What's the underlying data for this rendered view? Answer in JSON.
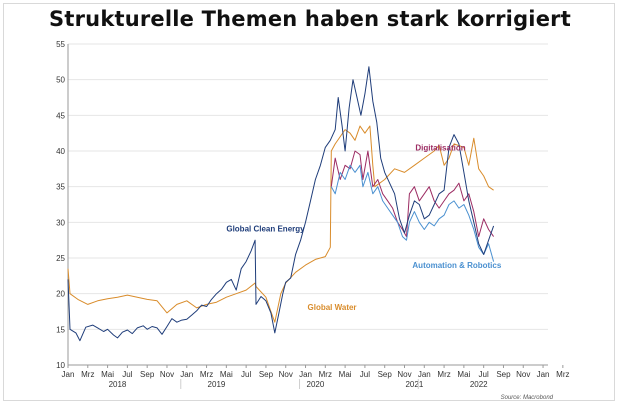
{
  "chart_data": {
    "type": "line",
    "title": "Strukturelle Themen haben stark korrigiert",
    "source": "Source: Macrobond",
    "ylim": [
      10,
      55
    ],
    "y_ticks": [
      10,
      15,
      20,
      25,
      30,
      35,
      40,
      45,
      50,
      55
    ],
    "x_range": [
      0,
      48.5
    ],
    "month_labels": [
      "Jan",
      "Mrz",
      "Mai",
      "Jul",
      "Sep",
      "Nov",
      "Jan",
      "Mrz",
      "Mai",
      "Jul",
      "Sep",
      "Nov",
      "Jan",
      "Mrz",
      "Mai",
      "Jul",
      "Sep",
      "Nov",
      "Jan",
      "Mrz",
      "Mai",
      "Jul",
      "Sep",
      "Nov",
      "Jan",
      "Mrz"
    ],
    "year_labels": [
      {
        "label": "2018",
        "x": 5
      },
      {
        "label": "2019",
        "x": 15
      },
      {
        "label": "2020",
        "x": 25
      },
      {
        "label": "2021",
        "x": 35
      },
      {
        "label": "2022",
        "x": 41.5
      }
    ],
    "series": [
      {
        "name": "Global Clean Energy",
        "color": "#1f3d7a",
        "label_at": [
          16,
          28.7
        ],
        "points": [
          [
            0,
            22
          ],
          [
            0.2,
            15
          ],
          [
            0.8,
            14.5
          ],
          [
            1.2,
            13.4
          ],
          [
            1.8,
            15.3
          ],
          [
            2.5,
            15.6
          ],
          [
            3,
            15.2
          ],
          [
            3.6,
            14.7
          ],
          [
            4,
            15
          ],
          [
            4.6,
            14.2
          ],
          [
            5,
            13.8
          ],
          [
            5.5,
            14.6
          ],
          [
            6,
            14.9
          ],
          [
            6.5,
            14.4
          ],
          [
            7,
            15.2
          ],
          [
            7.6,
            15.5
          ],
          [
            8,
            15
          ],
          [
            8.5,
            15.4
          ],
          [
            9,
            15.2
          ],
          [
            9.5,
            14.3
          ],
          [
            10,
            15.4
          ],
          [
            10.5,
            16.5
          ],
          [
            11,
            16
          ],
          [
            11.5,
            16.3
          ],
          [
            12,
            16.4
          ],
          [
            12.5,
            17
          ],
          [
            13,
            17.6
          ],
          [
            13.5,
            18.4
          ],
          [
            14,
            18.2
          ],
          [
            14.5,
            19.2
          ],
          [
            15,
            20
          ],
          [
            15.5,
            20.6
          ],
          [
            16,
            21.6
          ],
          [
            16.5,
            22
          ],
          [
            17,
            20.5
          ],
          [
            17.5,
            23.5
          ],
          [
            18,
            24.5
          ],
          [
            18.5,
            26
          ],
          [
            18.9,
            27.5
          ],
          [
            19,
            18.5
          ],
          [
            19.5,
            19.6
          ],
          [
            20,
            19
          ],
          [
            20.5,
            17.3
          ],
          [
            20.9,
            14.5
          ],
          [
            21.3,
            17.2
          ],
          [
            21.7,
            20
          ],
          [
            22,
            21.6
          ],
          [
            22.5,
            22.2
          ],
          [
            23,
            25.5
          ],
          [
            23.5,
            27.5
          ],
          [
            24,
            30
          ],
          [
            24.5,
            33
          ],
          [
            25,
            36
          ],
          [
            25.5,
            38
          ],
          [
            26,
            40.5
          ],
          [
            26.5,
            41.5
          ],
          [
            27,
            43
          ],
          [
            27.3,
            47.5
          ],
          [
            27.7,
            43.5
          ],
          [
            28,
            40
          ],
          [
            28.4,
            46
          ],
          [
            28.8,
            50
          ],
          [
            29.2,
            47.5
          ],
          [
            29.6,
            45
          ],
          [
            30,
            48
          ],
          [
            30.4,
            51.8
          ],
          [
            30.8,
            47
          ],
          [
            31.2,
            44
          ],
          [
            31.6,
            39
          ],
          [
            32,
            37
          ],
          [
            32.5,
            35.5
          ],
          [
            33,
            34
          ],
          [
            33.5,
            30.5
          ],
          [
            34,
            28.5
          ],
          [
            34.5,
            31
          ],
          [
            35,
            33
          ],
          [
            35.5,
            32.5
          ],
          [
            36,
            30.5
          ],
          [
            36.5,
            31
          ],
          [
            37,
            32.5
          ],
          [
            37.5,
            34
          ],
          [
            38,
            34.5
          ],
          [
            38.5,
            40.5
          ],
          [
            39,
            42.3
          ],
          [
            39.5,
            41
          ],
          [
            40,
            37
          ],
          [
            40.5,
            33
          ],
          [
            41,
            30
          ],
          [
            41.5,
            27
          ],
          [
            42,
            25.5
          ],
          [
            42.5,
            27.5
          ],
          [
            43,
            29.5
          ]
        ]
      },
      {
        "name": "Global Water",
        "color": "#d98c2b",
        "label_at": [
          24.2,
          17.7
        ],
        "points": [
          [
            0,
            23.5
          ],
          [
            0.2,
            20
          ],
          [
            1,
            19.2
          ],
          [
            2,
            18.5
          ],
          [
            3,
            19
          ],
          [
            4,
            19.3
          ],
          [
            5,
            19.5
          ],
          [
            6,
            19.8
          ],
          [
            7,
            19.5
          ],
          [
            8,
            19.2
          ],
          [
            9,
            19
          ],
          [
            10,
            17.3
          ],
          [
            11,
            18.5
          ],
          [
            12,
            19
          ],
          [
            13,
            18
          ],
          [
            14,
            18.5
          ],
          [
            15,
            18.8
          ],
          [
            16,
            19.5
          ],
          [
            17,
            20
          ],
          [
            18,
            20.5
          ],
          [
            18.9,
            21.5
          ],
          [
            19,
            21
          ],
          [
            20,
            19.5
          ],
          [
            20.5,
            17.5
          ],
          [
            20.9,
            16
          ],
          [
            21.5,
            20
          ],
          [
            22,
            21.5
          ],
          [
            23,
            23
          ],
          [
            24,
            24
          ],
          [
            25,
            24.8
          ],
          [
            26,
            25.2
          ],
          [
            26.5,
            26.5
          ],
          [
            26.6,
            40
          ],
          [
            27,
            41
          ],
          [
            28,
            43
          ],
          [
            28.5,
            42.5
          ],
          [
            29,
            41.5
          ],
          [
            29.5,
            43.5
          ],
          [
            30,
            42.5
          ],
          [
            30.5,
            43.5
          ],
          [
            30.8,
            38
          ],
          [
            31,
            35
          ],
          [
            32,
            36
          ],
          [
            33,
            37.5
          ],
          [
            34,
            37
          ],
          [
            35,
            38
          ],
          [
            36,
            39
          ],
          [
            37,
            40
          ],
          [
            37.5,
            40.8
          ],
          [
            38,
            38
          ],
          [
            38.5,
            39
          ],
          [
            39,
            41
          ],
          [
            40,
            40.5
          ],
          [
            40.5,
            38
          ],
          [
            41,
            41.8
          ],
          [
            41.5,
            37.5
          ],
          [
            42,
            36.5
          ],
          [
            42.5,
            35
          ],
          [
            43,
            34.5
          ]
        ]
      },
      {
        "name": "Digitalisation",
        "color": "#9c2c63",
        "label_at": [
          35.1,
          40.1
        ],
        "points": [
          [
            26.6,
            35
          ],
          [
            27,
            39
          ],
          [
            27.5,
            36
          ],
          [
            28,
            38
          ],
          [
            28.5,
            37.5
          ],
          [
            29,
            40
          ],
          [
            29.5,
            39.5
          ],
          [
            29.8,
            36
          ],
          [
            30.3,
            40
          ],
          [
            30.8,
            35
          ],
          [
            31.3,
            36
          ],
          [
            31.8,
            34
          ],
          [
            32.3,
            33
          ],
          [
            32.8,
            32
          ],
          [
            33.3,
            30
          ],
          [
            33.8,
            29
          ],
          [
            34.2,
            28
          ],
          [
            34.5,
            34
          ],
          [
            35,
            35
          ],
          [
            35.5,
            33
          ],
          [
            36,
            34
          ],
          [
            36.5,
            35
          ],
          [
            37,
            33
          ],
          [
            37.5,
            32
          ],
          [
            38,
            33
          ],
          [
            38.5,
            34
          ],
          [
            39,
            34.5
          ],
          [
            39.5,
            35.5
          ],
          [
            40,
            33
          ],
          [
            40.5,
            34
          ],
          [
            41,
            31.5
          ],
          [
            41.5,
            28
          ],
          [
            42,
            30.5
          ],
          [
            42.5,
            29
          ],
          [
            43,
            28
          ]
        ]
      },
      {
        "name": "Automation & Robotics",
        "color": "#4a90d0",
        "label_at": [
          34.8,
          23.6
        ],
        "points": [
          [
            26.6,
            35
          ],
          [
            27,
            34
          ],
          [
            27.5,
            37
          ],
          [
            28,
            36
          ],
          [
            28.5,
            38
          ],
          [
            29,
            37
          ],
          [
            29.5,
            38
          ],
          [
            29.8,
            35
          ],
          [
            30.3,
            37
          ],
          [
            30.8,
            34
          ],
          [
            31.3,
            35
          ],
          [
            31.8,
            33
          ],
          [
            32.3,
            32
          ],
          [
            32.8,
            31
          ],
          [
            33.3,
            30
          ],
          [
            33.8,
            28
          ],
          [
            34.2,
            27.5
          ],
          [
            34.5,
            30
          ],
          [
            35,
            31.5
          ],
          [
            35.5,
            30
          ],
          [
            36,
            29
          ],
          [
            36.5,
            30
          ],
          [
            37,
            29.5
          ],
          [
            37.5,
            30.5
          ],
          [
            38,
            31
          ],
          [
            38.5,
            32.5
          ],
          [
            39,
            33
          ],
          [
            39.5,
            32
          ],
          [
            40,
            32.5
          ],
          [
            40.5,
            31
          ],
          [
            41,
            29
          ],
          [
            41.5,
            26.5
          ],
          [
            42,
            25.5
          ],
          [
            42.5,
            27
          ],
          [
            43,
            24.5
          ]
        ]
      }
    ]
  }
}
